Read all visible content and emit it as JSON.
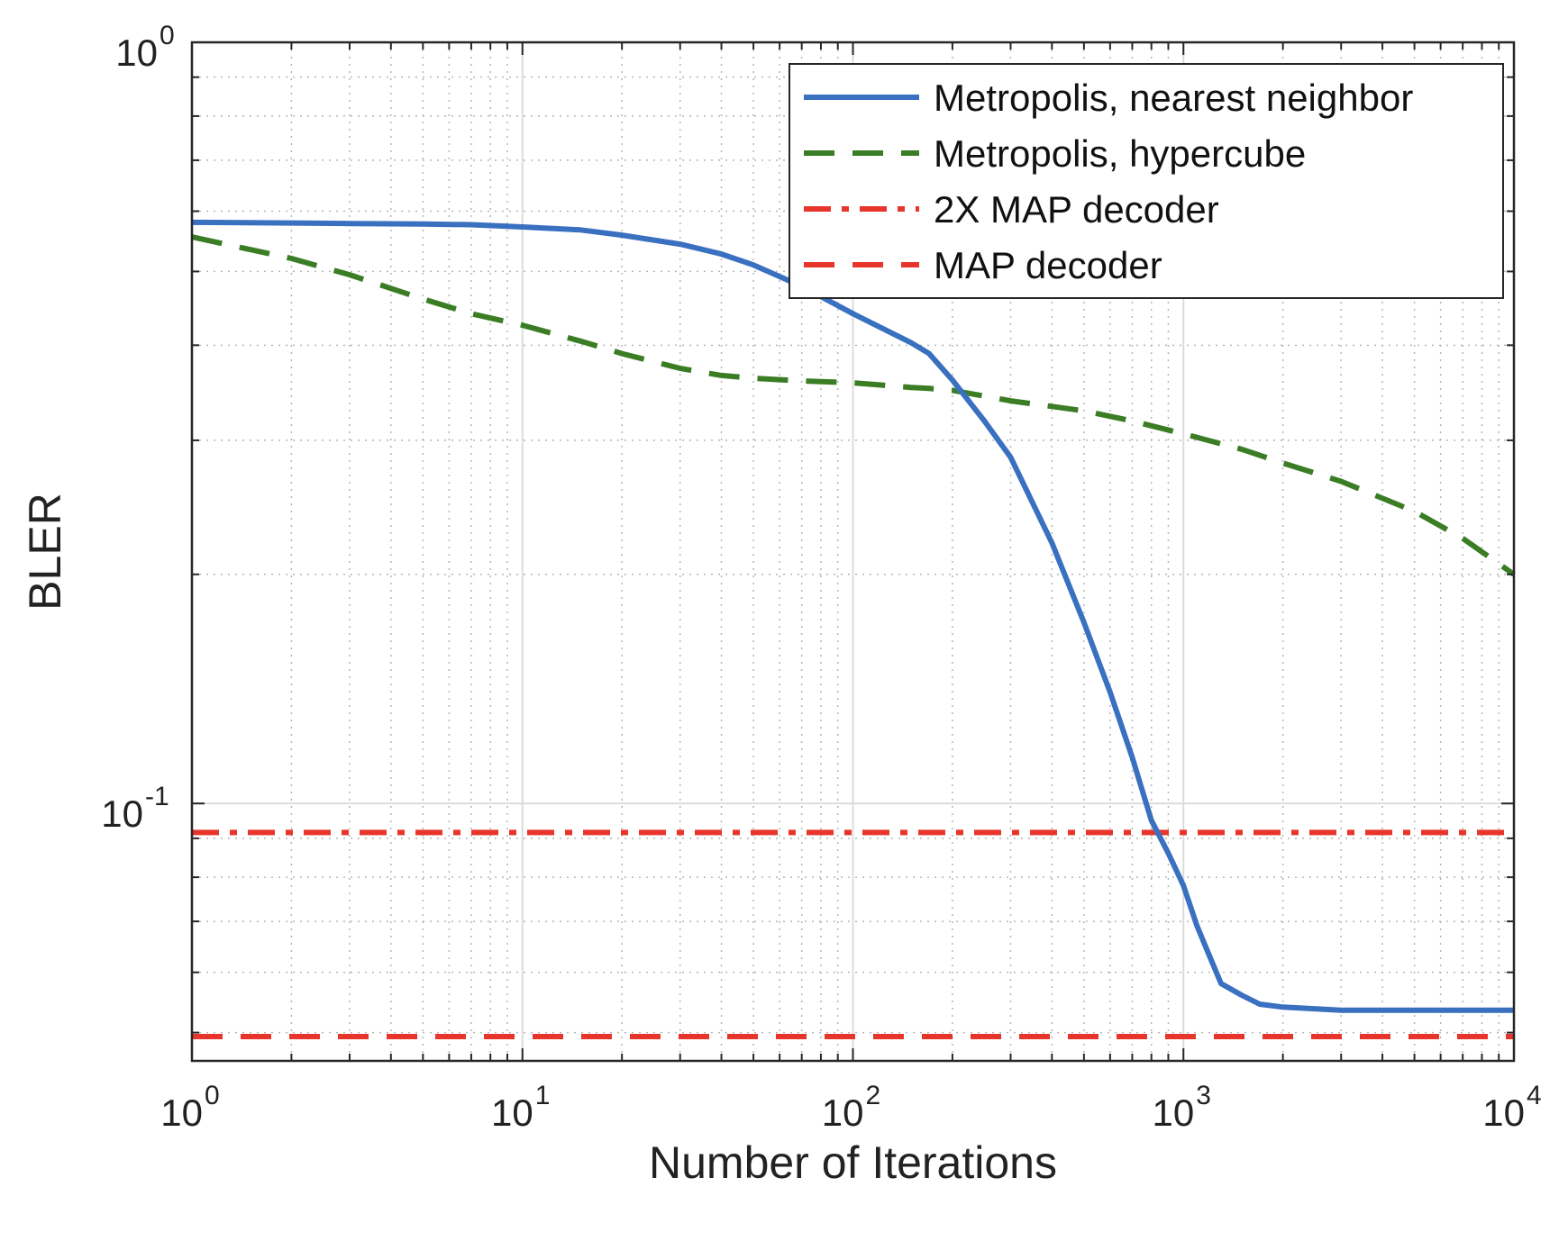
{
  "chart_data": {
    "type": "line",
    "title": "",
    "xlabel": "Number of Iterations",
    "ylabel": "BLER",
    "xscale": "log",
    "yscale": "log",
    "xlim": [
      1,
      10000
    ],
    "ylim": [
      0.0459,
      1
    ],
    "grid": true,
    "legend_position": "top-right",
    "x_ticks": [
      {
        "base": "10",
        "exp": "0",
        "value": 1
      },
      {
        "base": "10",
        "exp": "1",
        "value": 10
      },
      {
        "base": "10",
        "exp": "2",
        "value": 100
      },
      {
        "base": "10",
        "exp": "3",
        "value": 1000
      },
      {
        "base": "10",
        "exp": "4",
        "value": 10000
      }
    ],
    "y_ticks": [
      {
        "base": "10",
        "exp": "0",
        "value": 1
      },
      {
        "base": "10",
        "exp": "-1",
        "value": 0.1
      }
    ],
    "series": [
      {
        "name": "Metropolis, nearest neighbor",
        "color": "#3a70c0",
        "style": "solid",
        "x": [
          1,
          2,
          3,
          5,
          7,
          10,
          15,
          20,
          30,
          40,
          50,
          70,
          100,
          150,
          170,
          200,
          250,
          300,
          400,
          500,
          600,
          700,
          800,
          900,
          1000,
          1100,
          1200,
          1300,
          1500,
          1700,
          2000,
          3000,
          5000,
          10000
        ],
        "y": [
          0.58,
          0.579,
          0.578,
          0.577,
          0.576,
          0.572,
          0.567,
          0.558,
          0.543,
          0.527,
          0.51,
          0.478,
          0.44,
          0.403,
          0.39,
          0.36,
          0.318,
          0.285,
          0.22,
          0.173,
          0.14,
          0.115,
          0.095,
          0.086,
          0.078,
          0.069,
          0.063,
          0.058,
          0.056,
          0.0545,
          0.054,
          0.0535,
          0.0535,
          0.0535
        ]
      },
      {
        "name": "Metropolis, hypercube",
        "color": "#3a7d24",
        "style": "dashed",
        "x": [
          1,
          2,
          3,
          5,
          7,
          10,
          15,
          20,
          30,
          40,
          50,
          70,
          100,
          150,
          170,
          200,
          300,
          500,
          700,
          1000,
          1500,
          2000,
          3000,
          5000,
          7000,
          10000
        ],
        "y": [
          0.555,
          0.52,
          0.495,
          0.46,
          0.44,
          0.425,
          0.405,
          0.39,
          0.373,
          0.365,
          0.362,
          0.359,
          0.357,
          0.352,
          0.351,
          0.349,
          0.338,
          0.328,
          0.318,
          0.306,
          0.292,
          0.28,
          0.265,
          0.242,
          0.223,
          0.2
        ]
      },
      {
        "name": "2X MAP decoder",
        "color": "#e8352b",
        "style": "dashdot",
        "x": [
          1,
          10000
        ],
        "y": [
          0.0916,
          0.0916
        ]
      },
      {
        "name": "MAP decoder",
        "color": "#e8352b",
        "style": "dashed",
        "x": [
          1,
          10000
        ],
        "y": [
          0.0494,
          0.0494
        ]
      }
    ]
  }
}
